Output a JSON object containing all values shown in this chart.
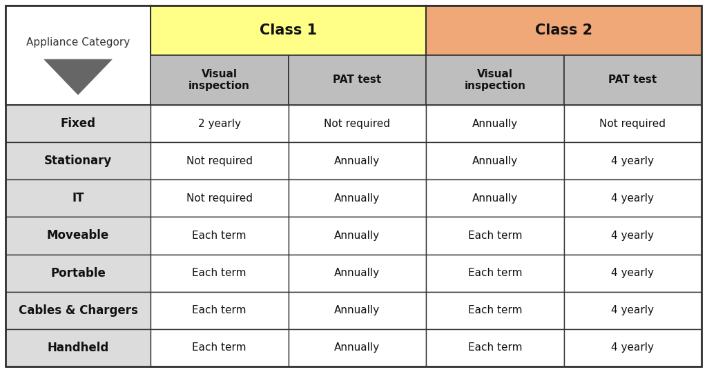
{
  "class1_color": "#FFFF88",
  "class2_color": "#F0A878",
  "header_bg_color": "#BEBEBE",
  "row_bg_color": "#DCDCDC",
  "white": "#FFFFFF",
  "border_color": "#333333",
  "col_headers": [
    "Visual\ninspection",
    "PAT test",
    "Visual\ninspection",
    "PAT test"
  ],
  "class_headers": [
    "Class 1",
    "Class 2"
  ],
  "row_labels": [
    "Fixed",
    "Stationary",
    "IT",
    "Moveable",
    "Portable",
    "Cables & Chargers",
    "Handheld"
  ],
  "row_label_bold": [
    true,
    true,
    true,
    true,
    true,
    true,
    true
  ],
  "data": [
    [
      "2 yearly",
      "Not required",
      "Annually",
      "Not required"
    ],
    [
      "Not required",
      "Annually",
      "Annually",
      "4 yearly"
    ],
    [
      "Not required",
      "Annually",
      "Annually",
      "4 yearly"
    ],
    [
      "Each term",
      "Annually",
      "Each term",
      "4 yearly"
    ],
    [
      "Each term",
      "Annually",
      "Each term",
      "4 yearly"
    ],
    [
      "Each term",
      "Annually",
      "Each term",
      "4 yearly"
    ],
    [
      "Each term",
      "Annually",
      "Each term",
      "4 yearly"
    ]
  ],
  "appliance_label": "Appliance Category",
  "figsize": [
    10.24,
    5.39
  ],
  "dpi": 100
}
